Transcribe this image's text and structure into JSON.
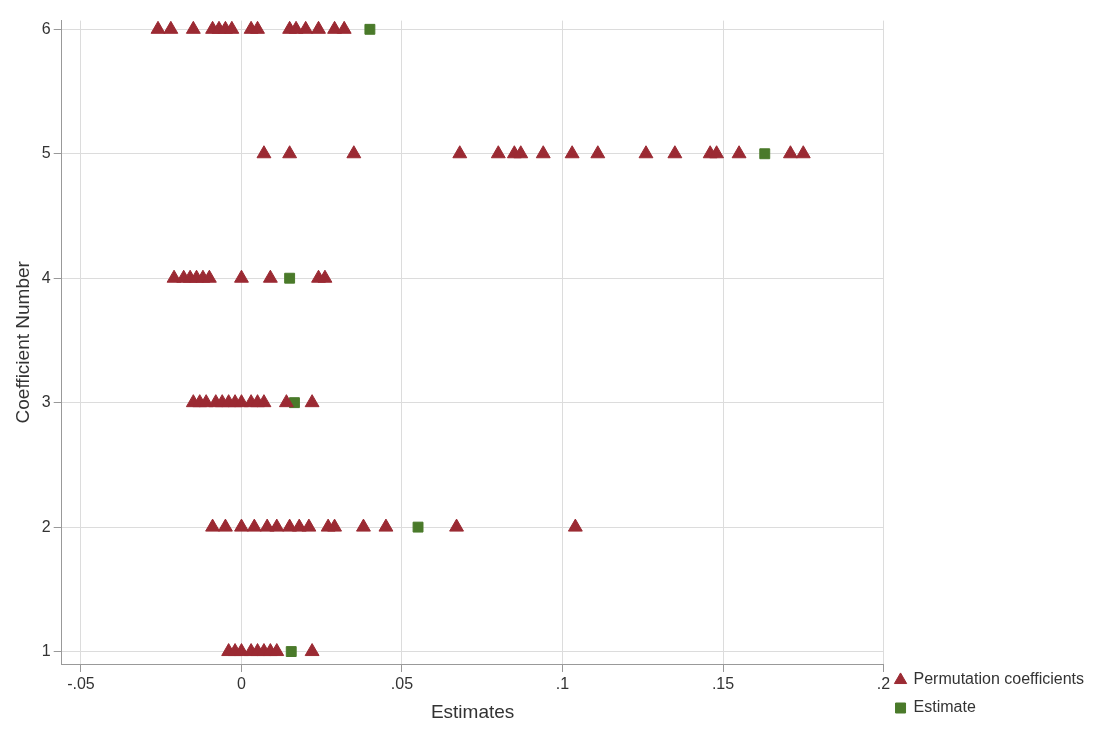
{
  "chart_data": {
    "type": "scatter",
    "xlabel": "Estimates",
    "ylabel": "Coefficient Number",
    "xlim": [
      -0.056,
      0.2
    ],
    "ylim": [
      0.9,
      6.07
    ],
    "xticks": [
      {
        "value": -0.05,
        "label": "-.05"
      },
      0,
      {
        "value": 0.05,
        "label": ".05"
      },
      {
        "value": 0.1,
        "label": ".1"
      },
      {
        "value": 0.15,
        "label": ".15"
      },
      {
        "value": 0.2,
        "label": ".2"
      }
    ],
    "yticks": [
      1,
      2,
      3,
      4,
      5,
      6
    ],
    "grid": true,
    "legend": "bottom right",
    "series": [
      {
        "name": "Permutation coefficients",
        "color": "#9b2a33",
        "marker": "triangle",
        "x": [
          -0.026,
          -0.022,
          -0.015,
          -0.009,
          -0.007,
          -0.005,
          -0.003,
          0.003,
          0.005,
          0.015,
          0.017,
          0.02,
          0.024,
          0.029,
          0.032,
          0.007,
          0.015,
          0.035,
          0.068,
          0.08,
          0.085,
          0.087,
          0.094,
          0.103,
          0.111,
          0.126,
          0.135,
          0.146,
          0.148,
          0.155,
          0.171,
          0.175,
          -0.021,
          -0.018,
          -0.016,
          -0.014,
          -0.012,
          -0.01,
          0,
          0.009,
          0.024,
          0.026,
          -0.015,
          -0.013,
          -0.011,
          -0.008,
          -0.006,
          -0.004,
          -0.002,
          0,
          0.003,
          0.005,
          0.007,
          0.014,
          0.022,
          -0.009,
          -0.005,
          0,
          0.004,
          0.008,
          0.011,
          0.015,
          0.018,
          0.021,
          0.027,
          0.029,
          0.038,
          0.045,
          0.067,
          0.104,
          -0.004,
          -0.002,
          0,
          0.003,
          0.005,
          0.007,
          0.009,
          0.011,
          0.022
        ],
        "values": [
          6,
          6,
          6,
          6,
          6,
          6,
          6,
          6,
          6,
          6,
          6,
          6,
          6,
          6,
          6,
          5,
          5,
          5,
          5,
          5,
          5,
          5,
          5,
          5,
          5,
          5,
          5,
          5,
          5,
          5,
          5,
          5,
          4,
          4,
          4,
          4,
          4,
          4,
          4,
          4,
          4,
          4,
          3,
          3,
          3,
          3,
          3,
          3,
          3,
          3,
          3,
          3,
          3,
          3,
          3,
          2,
          2,
          2,
          2,
          2,
          2,
          2,
          2,
          2,
          2,
          2,
          2,
          2,
          2,
          2,
          1,
          1,
          1,
          1,
          1,
          1,
          1,
          1,
          1
        ]
      },
      {
        "name": "Estimate",
        "color": "#4a7a2a",
        "marker": "square",
        "x": [
          0.04,
          0.163,
          0.015,
          0.0165,
          0.055,
          0.0155
        ],
        "values": [
          6,
          5,
          4,
          3,
          2,
          1
        ]
      }
    ]
  }
}
